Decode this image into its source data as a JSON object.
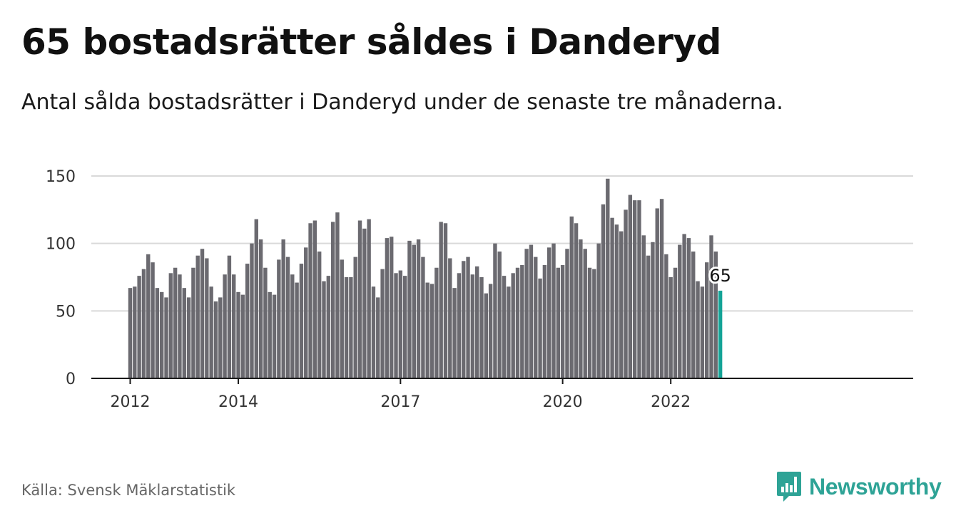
{
  "header": {
    "title": "65 bostadsrätter såldes i Danderyd",
    "subtitle": "Antal sålda bostadsrätter i Danderyd under de senaste tre månaderna."
  },
  "footer": {
    "source": "Källa: Svensk Mäklarstatistik",
    "brand": "Newsworthy",
    "brand_icon": "bar-chart-speech-bubble-icon"
  },
  "colors": {
    "bar": "#6b6a70",
    "highlight": "#13a396",
    "brand": "#2ea396",
    "grid": "#d9d9d9",
    "axis": "#1a1a1a"
  },
  "chart_data": {
    "type": "bar",
    "x_start": "2012-01",
    "x_tick_labels": [
      "2012",
      "2014",
      "2017",
      "2020",
      "2022"
    ],
    "y_ticks": [
      "0",
      "50",
      "100",
      "150"
    ],
    "ylim": [
      0,
      160
    ],
    "grid": true,
    "highlight_last": true,
    "last_value_label": "65",
    "values": [
      67,
      68,
      76,
      81,
      92,
      86,
      67,
      64,
      60,
      78,
      82,
      77,
      67,
      60,
      82,
      91,
      96,
      89,
      68,
      57,
      60,
      77,
      91,
      77,
      64,
      62,
      85,
      100,
      118,
      103,
      82,
      64,
      62,
      88,
      103,
      90,
      77,
      71,
      85,
      97,
      115,
      117,
      94,
      72,
      76,
      116,
      123,
      88,
      75,
      75,
      90,
      117,
      111,
      118,
      68,
      60,
      81,
      104,
      105,
      78,
      80,
      76,
      102,
      99,
      103,
      90,
      71,
      70,
      82,
      116,
      115,
      89,
      67,
      78,
      87,
      90,
      77,
      83,
      75,
      63,
      70,
      100,
      94,
      76,
      68,
      78,
      82,
      84,
      96,
      99,
      90,
      74,
      84,
      97,
      100,
      82,
      84,
      96,
      120,
      115,
      103,
      96,
      82,
      81,
      100,
      129,
      148,
      119,
      114,
      109,
      125,
      136,
      132,
      132,
      106,
      91,
      101,
      126,
      133,
      92,
      75,
      82,
      99,
      107,
      104,
      94,
      72,
      68,
      86,
      106,
      94,
      65
    ]
  }
}
